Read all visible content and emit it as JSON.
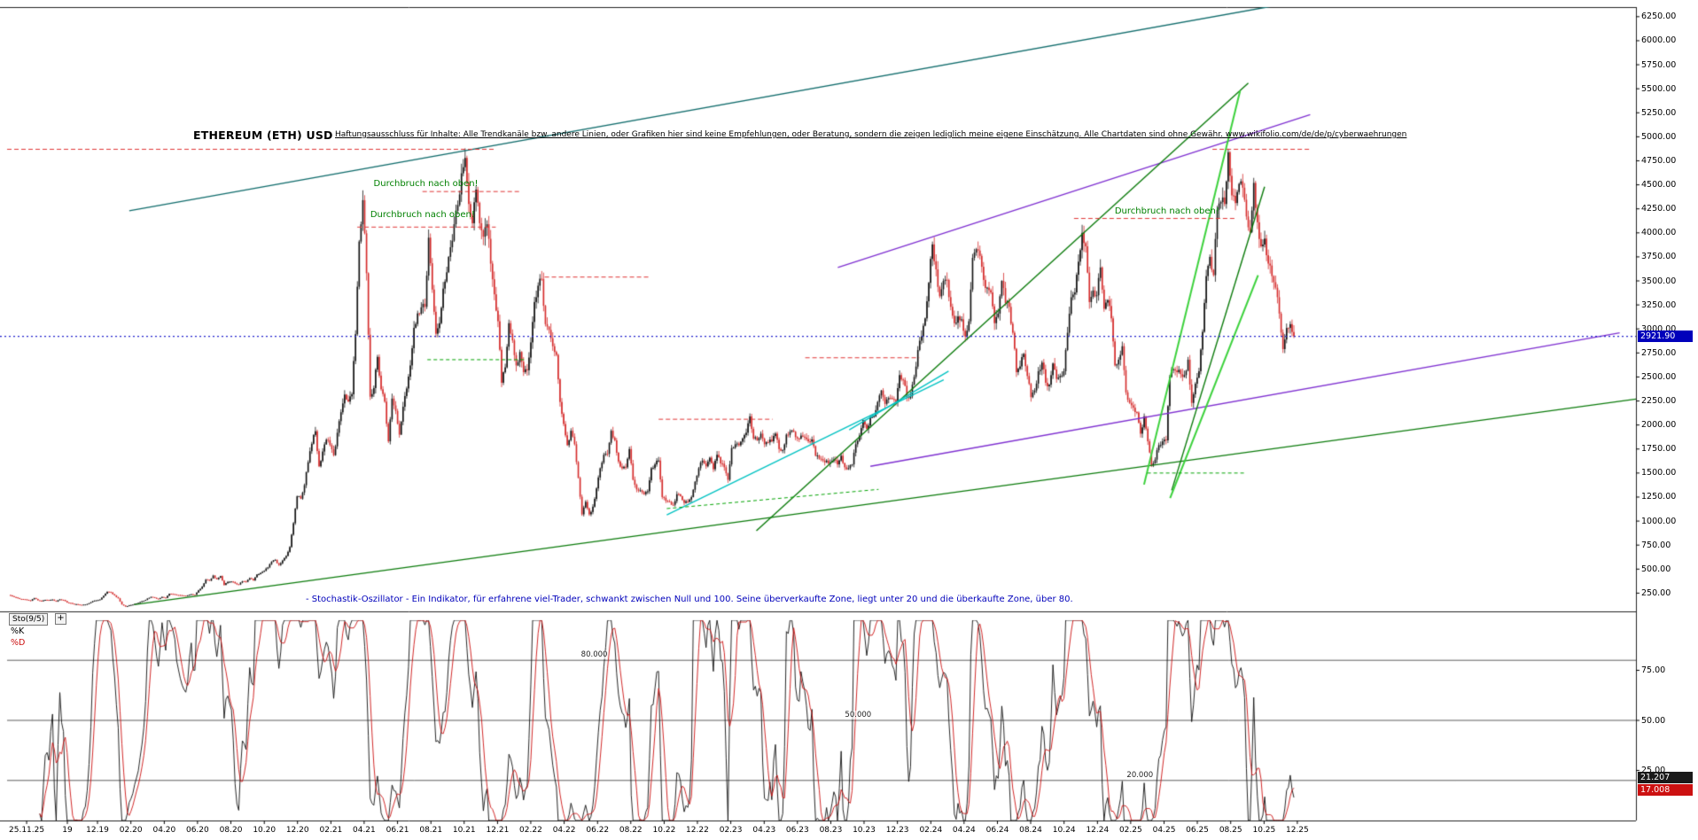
{
  "header": {
    "title": "ETHEREUM (ETH) USD",
    "disclaimer": "Haftungsausschluss für Inhalte: Alle Trendkanäle bzw. andere Linien, oder Grafiken hier sind keine Empfehlungen, oder Beratung, sondern die zeigen lediglich meine eigene Einschätzung. Alle Chartdaten sind ohne Gewähr.  www.wikifolio.com/de/de/p/cyberwaehrungen"
  },
  "chart_data": {
    "type": "candlestick",
    "instrument": "ETHEREUM (ETH) USD",
    "currency": "USD",
    "current_price": 2921.9,
    "current_price_label": "2921.90",
    "ylim": [
      60,
      6350
    ],
    "data_t_range": [
      0.001,
      0.79
    ],
    "y_axis_ticks": [
      "6250.00",
      "6000.00",
      "5750.00",
      "5500.00",
      "5250.00",
      "5000.00",
      "4750.00",
      "4500.00",
      "4250.00",
      "4000.00",
      "3750.00",
      "3500.00",
      "3250.00",
      "3000.00",
      "2750.00",
      "2500.00",
      "2250.00",
      "2000.00",
      "1750.00",
      "1500.00",
      "1250.00",
      "1000.00",
      "750.00",
      "500.00",
      "250.00"
    ],
    "x_axis_ticks": [
      {
        "label": "25.11.25",
        "t": 0.012
      },
      {
        "label": "19",
        "t": 0.037
      },
      {
        "label": "12.19",
        "t": 0.0555
      },
      {
        "label": "02.20",
        "t": 0.076
      },
      {
        "label": "04.20",
        "t": 0.0965
      },
      {
        "label": "06.20",
        "t": 0.1169
      },
      {
        "label": "08.20",
        "t": 0.1374
      },
      {
        "label": "10.20",
        "t": 0.1579
      },
      {
        "label": "12.20",
        "t": 0.1783
      },
      {
        "label": "02.21",
        "t": 0.1988
      },
      {
        "label": "04.21",
        "t": 0.2192
      },
      {
        "label": "06.21",
        "t": 0.2397
      },
      {
        "label": "08.21",
        "t": 0.2602
      },
      {
        "label": "10.21",
        "t": 0.2806
      },
      {
        "label": "12.21",
        "t": 0.3011
      },
      {
        "label": "02.22",
        "t": 0.3215
      },
      {
        "label": "04.22",
        "t": 0.342
      },
      {
        "label": "06.22",
        "t": 0.3625
      },
      {
        "label": "08.22",
        "t": 0.3829
      },
      {
        "label": "10.22",
        "t": 0.4034
      },
      {
        "label": "12.22",
        "t": 0.4238
      },
      {
        "label": "02.23",
        "t": 0.4443
      },
      {
        "label": "04.23",
        "t": 0.4648
      },
      {
        "label": "06.23",
        "t": 0.4852
      },
      {
        "label": "08.23",
        "t": 0.5057
      },
      {
        "label": "10.23",
        "t": 0.5261
      },
      {
        "label": "12.23",
        "t": 0.5466
      },
      {
        "label": "02.24",
        "t": 0.5671
      },
      {
        "label": "04.24",
        "t": 0.5875
      },
      {
        "label": "06.24",
        "t": 0.608
      },
      {
        "label": "08.24",
        "t": 0.6284
      },
      {
        "label": "10.24",
        "t": 0.6489
      },
      {
        "label": "12.24",
        "t": 0.6694
      },
      {
        "label": "02.25",
        "t": 0.6898
      },
      {
        "label": "04.25",
        "t": 0.7103
      },
      {
        "label": "06.25",
        "t": 0.7307
      },
      {
        "label": "08.25",
        "t": 0.7512
      },
      {
        "label": "10.25",
        "t": 0.7717
      },
      {
        "label": "12.25",
        "t": 0.7921
      }
    ],
    "weekly_closes": [
      230,
      218,
      205,
      190,
      187,
      180,
      170,
      198,
      175,
      166,
      180,
      176,
      183,
      162,
      185,
      178,
      152,
      147,
      135,
      132,
      128,
      132,
      144,
      166,
      175,
      184,
      223,
      265,
      258,
      227,
      196,
      132,
      110,
      124,
      131,
      143,
      158,
      170,
      194,
      211,
      201,
      189,
      210,
      200,
      244,
      240,
      231,
      228,
      225,
      227,
      239,
      233,
      279,
      318,
      390,
      379,
      433,
      395,
      428,
      335,
      366,
      371,
      353,
      340,
      374,
      368,
      406,
      383,
      444,
      460,
      482,
      518,
      577,
      595,
      544,
      590,
      637,
      730,
      978,
      1258,
      1233,
      1374,
      1612,
      1805,
      1935,
      1570,
      1724,
      1847,
      1792,
      1686,
      1919,
      2133,
      2317,
      2244,
      2320,
      2945,
      3910,
      4340,
      3580,
      2295,
      2385,
      2709,
      2372,
      2243,
      1830,
      2275,
      2146,
      1900,
      2190,
      2380,
      2620,
      3012,
      3162,
      3225,
      3230,
      3950,
      3410,
      2950,
      3060,
      3420,
      3590,
      3850,
      4090,
      4290,
      4620,
      4780,
      4300,
      4100,
      4450,
      4100,
      3960,
      4090,
      3680,
      3360,
      3080,
      2440,
      2600,
      3060,
      2880,
      2620,
      2760,
      2550,
      2570,
      2860,
      3280,
      3450,
      3520,
      3050,
      2990,
      2820,
      2730,
      2240,
      2010,
      1790,
      1940,
      1800,
      1450,
      1070,
      1200,
      1070,
      1150,
      1340,
      1550,
      1690,
      1700,
      1940,
      1840,
      1620,
      1550,
      1560,
      1750,
      1430,
      1330,
      1320,
      1280,
      1310,
      1550,
      1590,
      1630,
      1250,
      1210,
      1200,
      1170,
      1280,
      1260,
      1190,
      1200,
      1250,
      1410,
      1550,
      1630,
      1570,
      1660,
      1540,
      1690,
      1600,
      1560,
      1430,
      1760,
      1800,
      1790,
      1860,
      1920,
      2090,
      1860,
      1840,
      1910,
      1800,
      1820,
      1830,
      1910,
      1750,
      1740,
      1900,
      1930,
      1930,
      1860,
      1890,
      1870,
      1830,
      1850,
      1680,
      1650,
      1630,
      1630,
      1610,
      1640,
      1590,
      1680,
      1560,
      1550,
      1590,
      1800,
      1890,
      2050,
      1960,
      2080,
      2090,
      2240,
      2360,
      2220,
      2280,
      2270,
      2240,
      2520,
      2470,
      2290,
      2300,
      2500,
      2780,
      2920,
      3110,
      3480,
      3880,
      3620,
      3340,
      3500,
      3510,
      3230,
      3060,
      3130,
      3100,
      2920,
      3080,
      3740,
      3830,
      3760,
      3510,
      3430,
      3380,
      3060,
      3160,
      3500,
      3270,
      3230,
      2960,
      2550,
      2610,
      2740,
      2510,
      2290,
      2360,
      2560,
      2650,
      2440,
      2420,
      2640,
      2480,
      2510,
      2560,
      2960,
      3330,
      3380,
      3700,
      4000,
      3860,
      3280,
      3400,
      3350,
      3640,
      3210,
      3300,
      3110,
      2620,
      2680,
      2820,
      2340,
      2230,
      2180,
      2130,
      1910,
      2090,
      1830,
      1580,
      1640,
      1790,
      1830,
      1840,
      2500,
      2580,
      2550,
      2530,
      2520,
      2680,
      2230,
      2430,
      2560,
      2970,
      3550,
      3750,
      3560,
      4240,
      4320,
      4300,
      4840,
      4390,
      4310,
      4510,
      4470,
      4170,
      4010,
      4520,
      4110,
      3860,
      3940,
      3680,
      3550,
      3430,
      3160,
      2790,
      3010,
      3050,
      2922
    ],
    "trendlines": [
      {
        "name": "teal-channel-upper",
        "x1": 0.075,
        "p1": 4230,
        "x2": 0.8,
        "p2": 6430,
        "color": "teal",
        "w": 1.4
      },
      {
        "name": "violet-upper",
        "x1": 0.51,
        "p1": 3640,
        "x2": 0.8,
        "p2": 5230,
        "color": "violet",
        "w": 1.4
      },
      {
        "name": "violet-lower-support",
        "x1": 0.53,
        "p1": 1570,
        "x2": 0.99,
        "p2": 2960,
        "color": "violet",
        "w": 1.4
      },
      {
        "name": "green-longterm-support",
        "x1": 0.078,
        "p1": 130,
        "x2": 1.0,
        "p2": 2270,
        "color": "green",
        "w": 1.4
      },
      {
        "name": "green-steep-trend",
        "x1": 0.46,
        "p1": 900,
        "x2": 0.762,
        "p2": 5560,
        "color": "green",
        "w": 1.4
      },
      {
        "name": "green-right-steep",
        "x1": 0.715,
        "p1": 1320,
        "x2": 0.772,
        "p2": 4480,
        "color": "green",
        "w": 1.4
      },
      {
        "name": "lime-steep-a",
        "x1": 0.698,
        "p1": 1380,
        "x2": 0.757,
        "p2": 5480,
        "color": "lime",
        "w": 2
      },
      {
        "name": "lime-steep-b",
        "x1": 0.714,
        "p1": 1240,
        "x2": 0.768,
        "p2": 3560,
        "color": "lime",
        "w": 2
      },
      {
        "name": "cyan-support-a",
        "x1": 0.405,
        "p1": 1065,
        "x2": 0.575,
        "p2": 2470,
        "color": "cyan",
        "w": 1.4
      },
      {
        "name": "cyan-support-b",
        "x1": 0.517,
        "p1": 1950,
        "x2": 0.578,
        "p2": 2560,
        "color": "cyan",
        "w": 1.4
      },
      {
        "name": "resistance-4870",
        "x1": 0.0,
        "p1": 4870,
        "x2": 0.3,
        "p2": 4870,
        "color": "red_dashed",
        "dash": [
          5,
          3
        ],
        "w": 1
      },
      {
        "name": "resistance-4870-right",
        "x1": 0.74,
        "p1": 4870,
        "x2": 0.8,
        "p2": 4870,
        "color": "red_dashed",
        "dash": [
          5,
          3
        ],
        "w": 1
      },
      {
        "name": "resistance-4430",
        "x1": 0.255,
        "p1": 4430,
        "x2": 0.315,
        "p2": 4430,
        "color": "red_dashed",
        "dash": [
          5,
          3
        ],
        "w": 1
      },
      {
        "name": "resistance-4060",
        "x1": 0.215,
        "p1": 4060,
        "x2": 0.3,
        "p2": 4060,
        "color": "red_dashed",
        "dash": [
          5,
          3
        ],
        "w": 1
      },
      {
        "name": "resistance-4150",
        "x1": 0.655,
        "p1": 4150,
        "x2": 0.755,
        "p2": 4150,
        "color": "red_dashed",
        "dash": [
          5,
          3
        ],
        "w": 1
      },
      {
        "name": "resistance-3540",
        "x1": 0.33,
        "p1": 3540,
        "x2": 0.395,
        "p2": 3540,
        "color": "red_dashed",
        "dash": [
          5,
          3
        ],
        "w": 1
      },
      {
        "name": "resistance-2700",
        "x1": 0.49,
        "p1": 2700,
        "x2": 0.56,
        "p2": 2700,
        "color": "red_dashed",
        "dash": [
          5,
          3
        ],
        "w": 1
      },
      {
        "name": "resistance-2060",
        "x1": 0.4,
        "p1": 2060,
        "x2": 0.47,
        "p2": 2060,
        "color": "red_dashed",
        "dash": [
          5,
          3
        ],
        "w": 1
      },
      {
        "name": "support-2680-dashed",
        "x1": 0.258,
        "p1": 2680,
        "x2": 0.318,
        "p2": 2680,
        "color": "green_dashed",
        "dash": [
          4,
          3
        ],
        "w": 1
      },
      {
        "name": "support-rising-dashed",
        "x1": 0.405,
        "p1": 1130,
        "x2": 0.535,
        "p2": 1330,
        "color": "green_dashed",
        "dash": [
          4,
          3
        ],
        "w": 1
      },
      {
        "name": "support-1500-dashed",
        "x1": 0.7,
        "p1": 1500,
        "x2": 0.76,
        "p2": 1500,
        "color": "green_dashed",
        "dash": [
          4,
          3
        ],
        "w": 1
      }
    ],
    "breakout_annotations": [
      {
        "text": "Durchbruch nach oben!",
        "t": 0.225,
        "price": 4510
      },
      {
        "text": "Durchbruch nach oben!",
        "t": 0.223,
        "price": 4180
      },
      {
        "text": "Durchbruch nach oben!",
        "t": 0.68,
        "price": 4220
      }
    ],
    "colors": {
      "up": "#101010",
      "down": "#d42a2a",
      "current_price_line": "#2020cc",
      "price_badge_bg": "#0000bb",
      "k_line": "#101010",
      "d_line": "#cc1111",
      "teal": "#0f6b6b",
      "violet": "#7e2fd0",
      "green": "#0a7a0a",
      "lime": "#3bd13b",
      "cyan": "#00c2c2",
      "red_dashed": "#e03535",
      "green_dashed": "#00a300",
      "level_line": "#333333",
      "border": "#222222"
    }
  },
  "oscillator": {
    "indicator_label": "Sto(9/5)",
    "add_button_label": "+",
    "k_label": "%K",
    "d_label": "%D",
    "k_period": 9,
    "d_period": 5,
    "k_value": 21.207,
    "d_value": 17.008,
    "k_value_label": "21.207",
    "d_value_label": "17.008",
    "levels": [
      80,
      50,
      20
    ],
    "level_labels": [
      {
        "text": "80.000",
        "t": 0.36,
        "level": 80
      },
      {
        "text": "50.000",
        "t": 0.522,
        "level": 50
      },
      {
        "text": "20.000",
        "t": 0.695,
        "level": 20
      }
    ],
    "axis_ticks": [
      {
        "label": "75.00",
        "v": 75
      },
      {
        "label": "50.00",
        "v": 50
      },
      {
        "label": "25.00",
        "v": 25
      }
    ],
    "description": "- Stochastik-Oszillator - Ein Indikator, für erfahrene viel-Trader, schwankt zwischen Null und 100. Seine überverkaufte Zone, liegt unter 20 und die überkaufte Zone, über 80."
  }
}
